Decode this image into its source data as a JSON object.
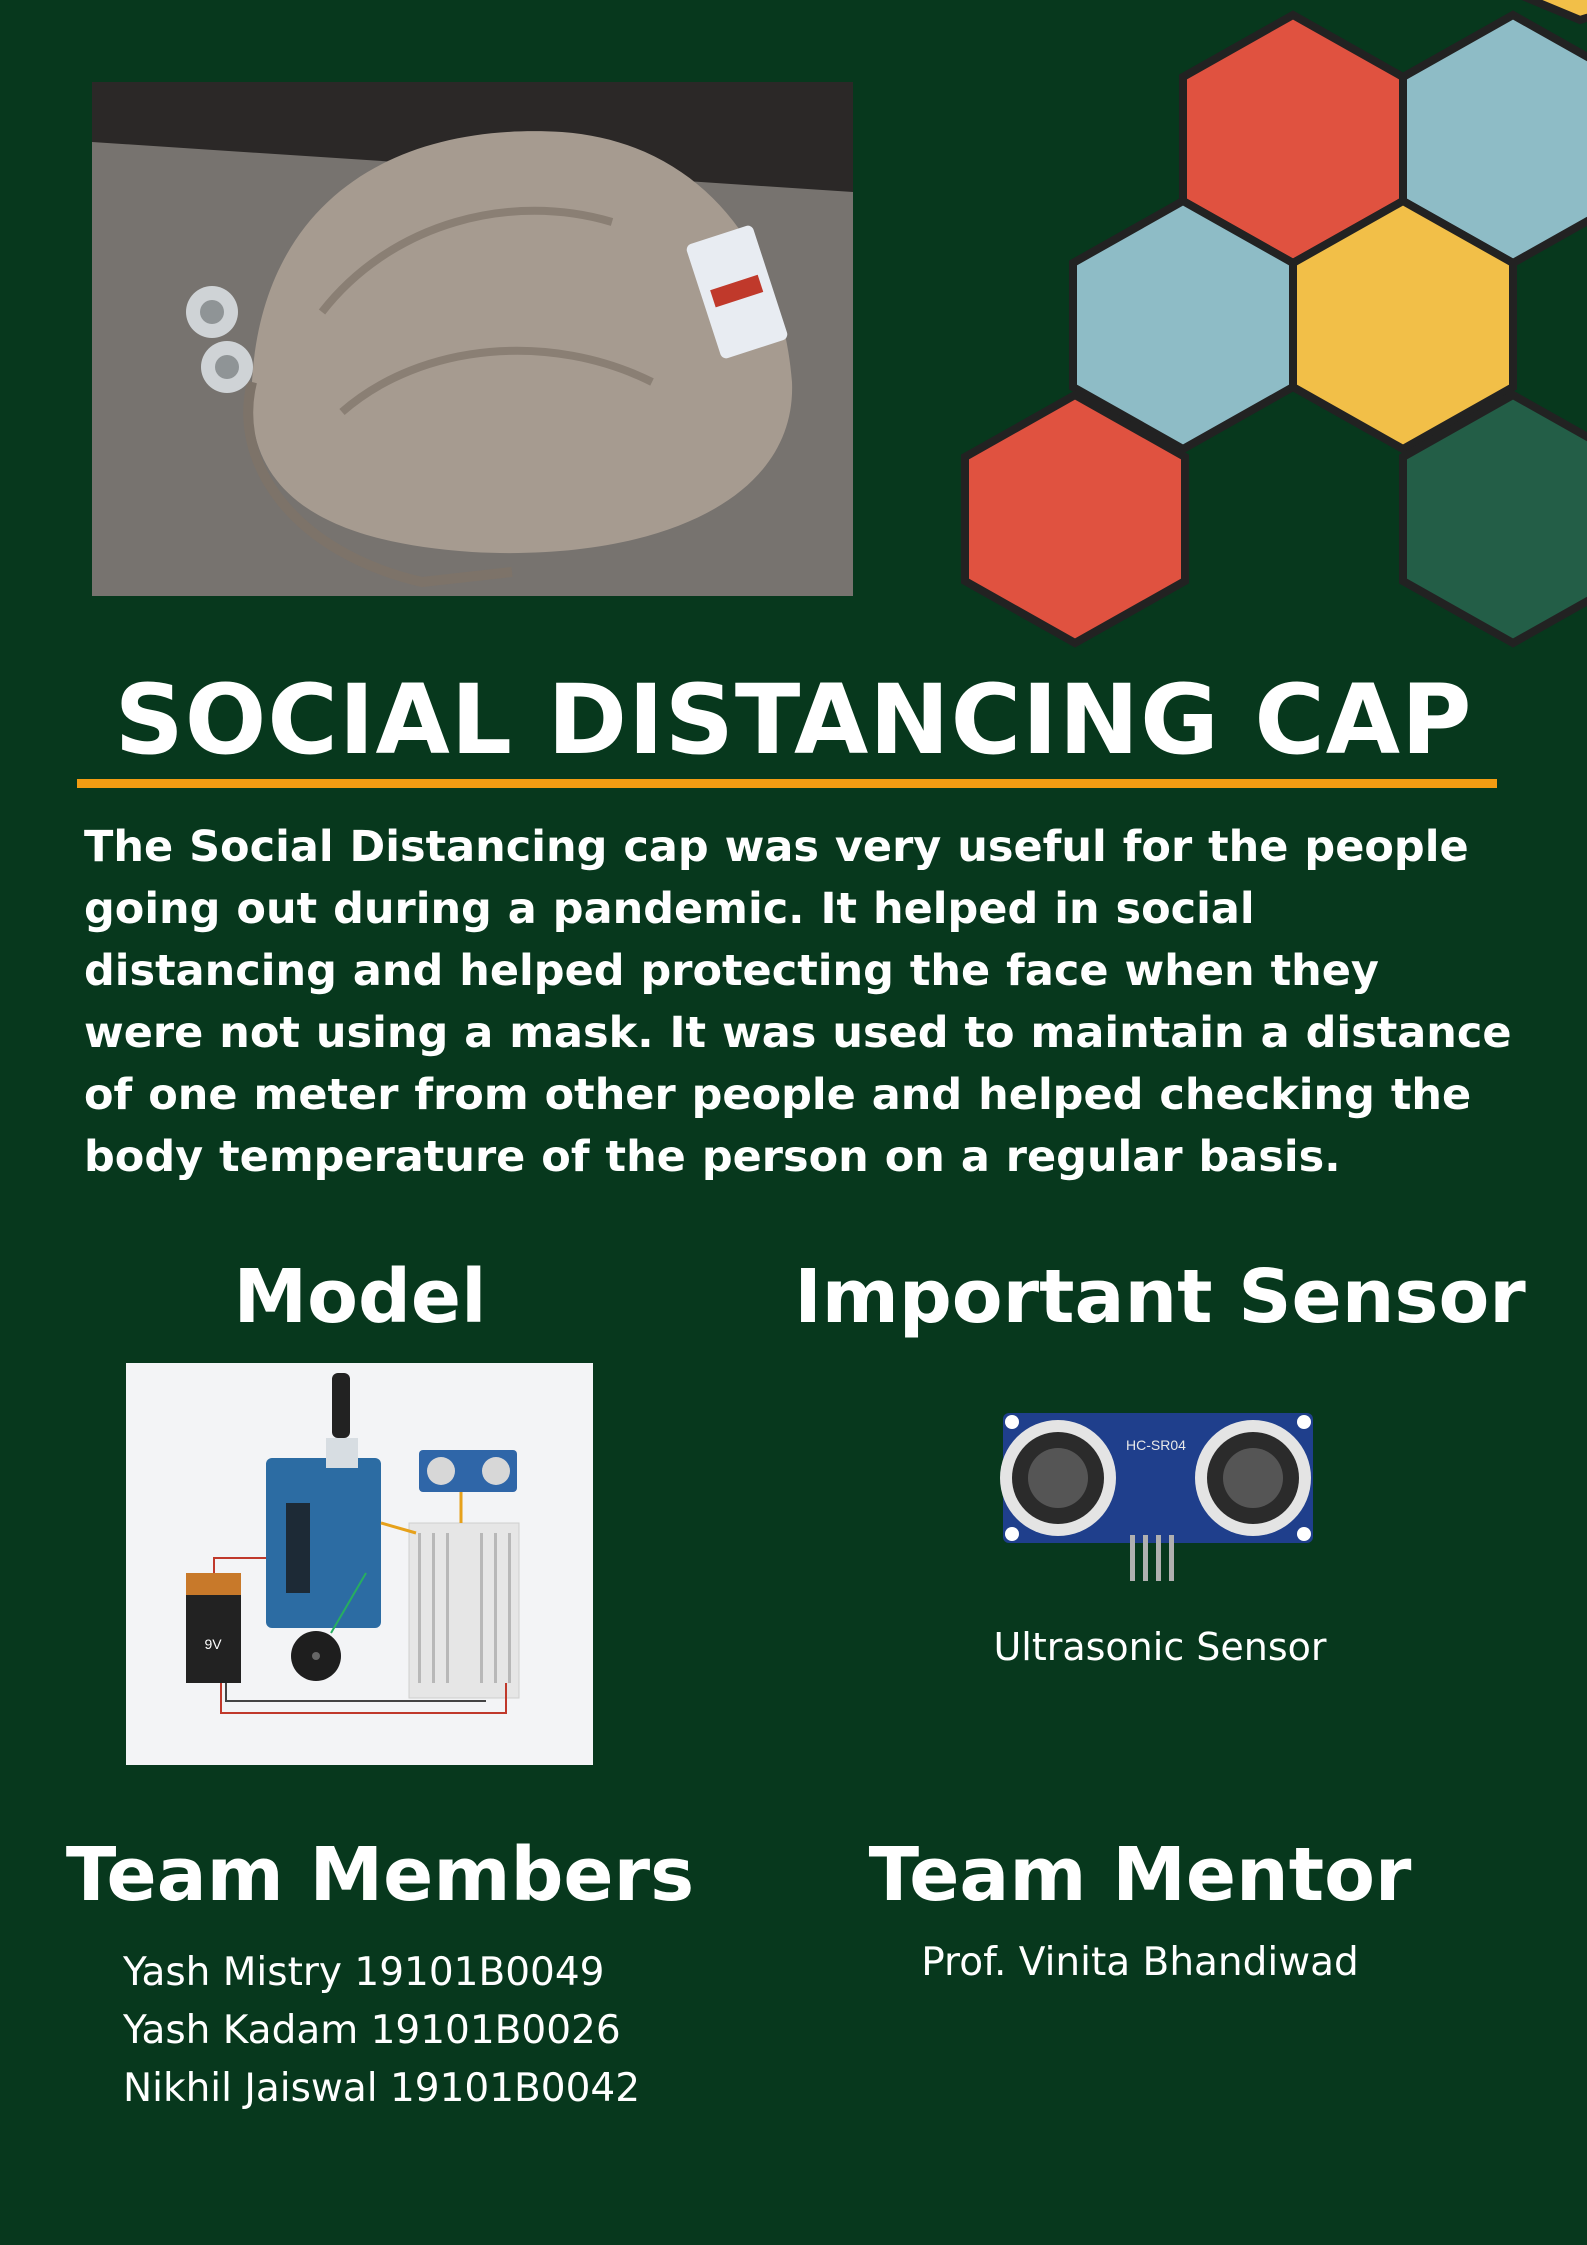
{
  "title": "SOCIAL DISTANCING CAP",
  "description": "The Social Distancing cap was very useful for the people going out during a pandemic. It helped in social distancing and helped protecting the face when they were not using a mask. It was used to maintain a distance of one meter from other people and helped checking the body temperature of the person on a regular basis.",
  "model": {
    "heading": "Model",
    "battery_label": "9V"
  },
  "sensor": {
    "heading": "Important Sensor",
    "module_label": "HC-SR04",
    "caption": "Ultrasonic Sensor"
  },
  "team": {
    "heading": "Team Members",
    "members": [
      "Yash Mistry 19101B0049",
      "Yash Kadam 19101B0026",
      "Nikhil Jaiswal 19101B0042"
    ]
  },
  "mentor": {
    "heading": "Team Mentor",
    "name": "Prof. Vinita Bhandiwad"
  },
  "colors": {
    "background": "#07381d",
    "accent_rule": "#f39c12",
    "hex_red": "#e05240",
    "hex_blue": "#8ebcc6",
    "hex_yellow": "#f2bf48",
    "hex_teal": "#235e47"
  }
}
